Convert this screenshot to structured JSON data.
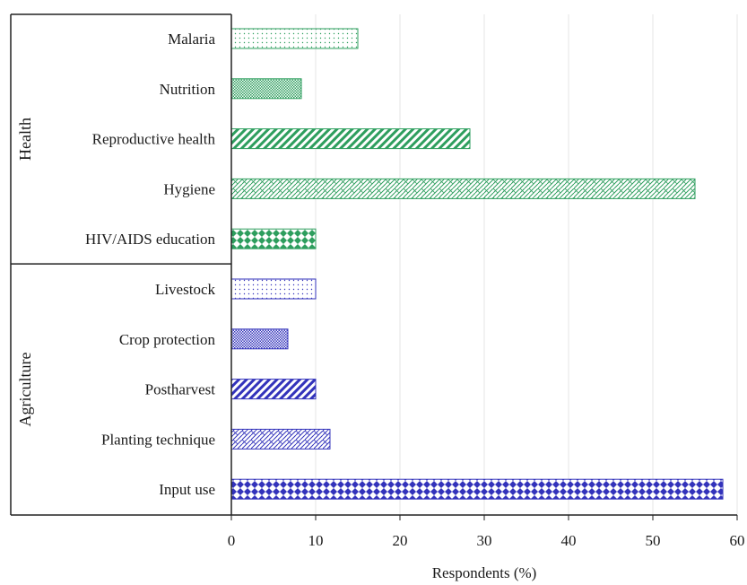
{
  "chart_data": {
    "type": "bar",
    "orientation": "horizontal",
    "title": "",
    "xlabel": "Respondents (%)",
    "ylabel": "",
    "xlim": [
      0,
      60
    ],
    "xticks": [
      "0",
      "10",
      "20",
      "30",
      "40",
      "50",
      "60"
    ],
    "grid": "vertical gridlines",
    "groups": [
      {
        "name": "Health",
        "color": "#2e9e5e",
        "categories": [
          "Malaria",
          "Nutrition",
          "Reproductive health",
          "Hygiene",
          "HIV/AIDS education"
        ],
        "values": [
          15,
          8.3,
          28.3,
          55,
          10
        ],
        "patterns": [
          "dots",
          "crosshatch",
          "diagonal",
          "brick",
          "diamonds"
        ]
      },
      {
        "name": "Agriculture",
        "color": "#3333bb",
        "categories": [
          "Livestock",
          "Crop protection",
          "Postharvest",
          "Planting technique",
          "Input use"
        ],
        "values": [
          10,
          6.7,
          10,
          11.7,
          58.3
        ],
        "patterns": [
          "dots",
          "crosshatch",
          "diagonal",
          "brick",
          "diamonds"
        ]
      }
    ]
  }
}
